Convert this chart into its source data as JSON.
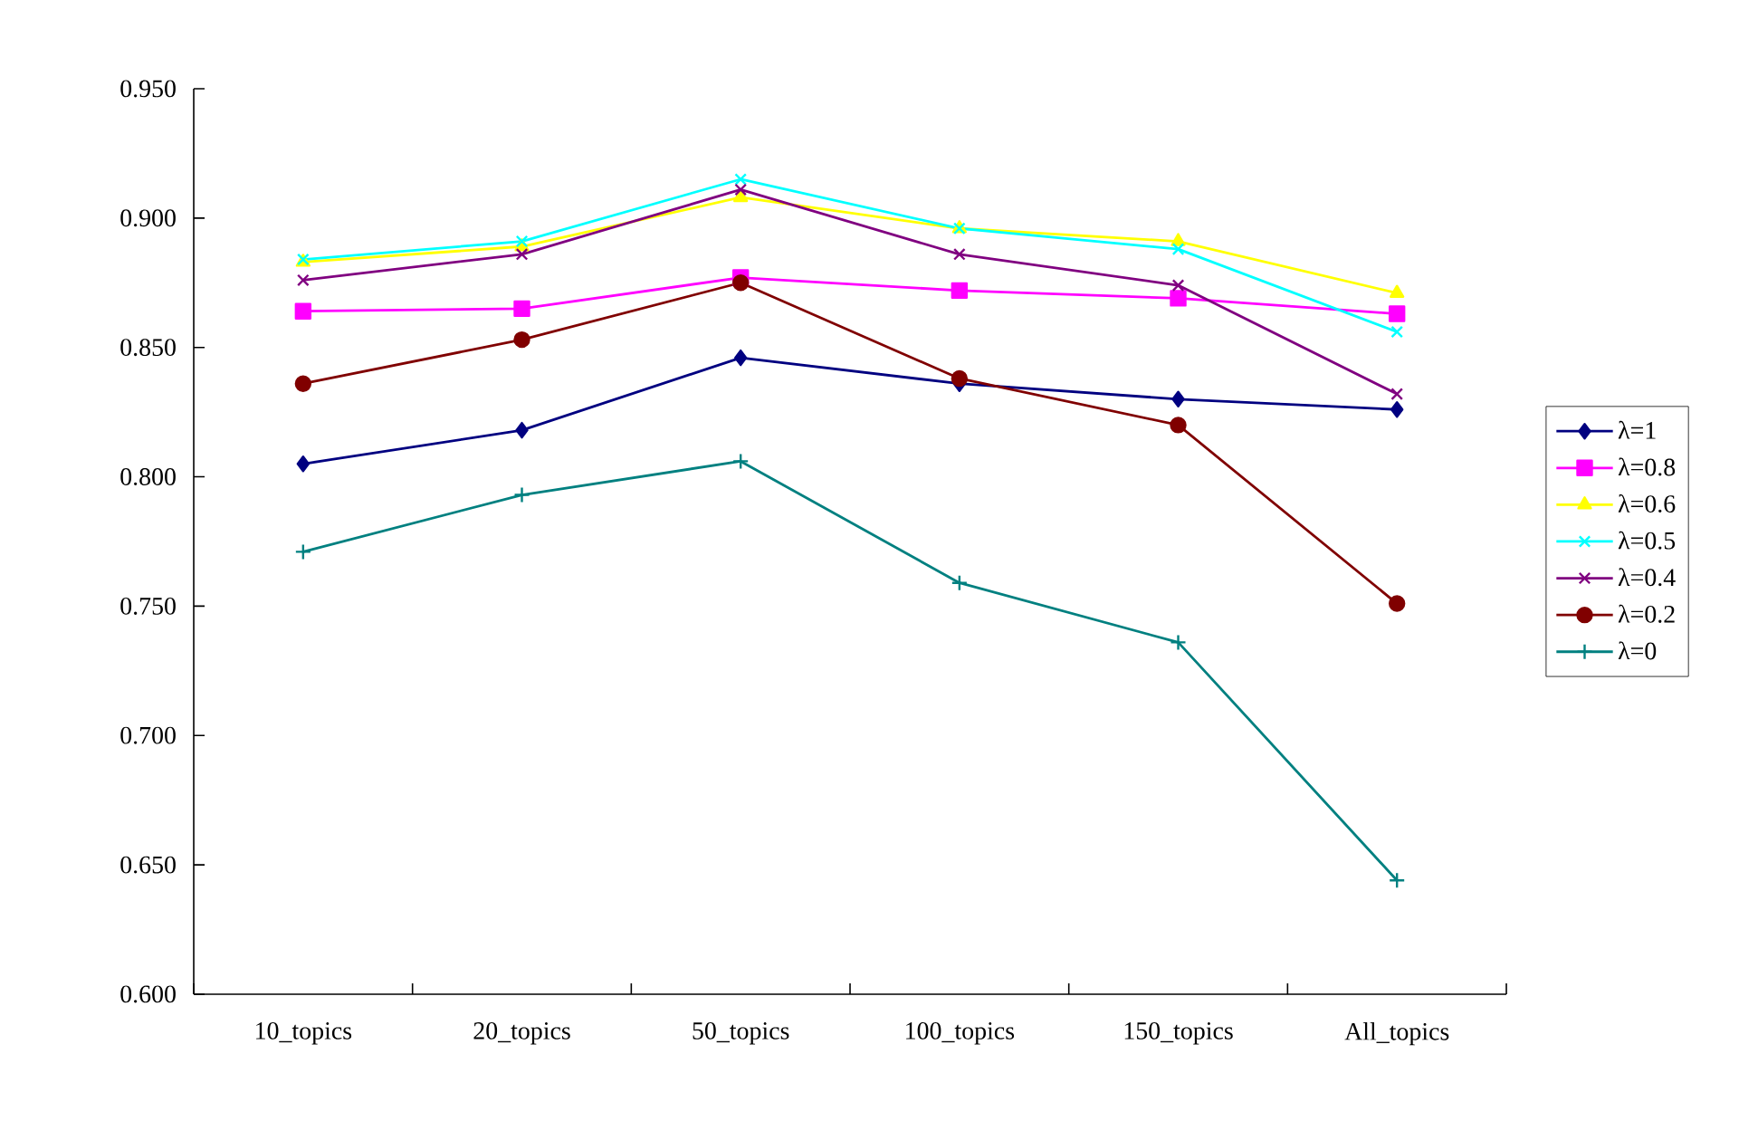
{
  "chart_data": {
    "type": "line",
    "categories": [
      "10_topics",
      "20_topics",
      "50_topics",
      "100_topics",
      "150_topics",
      "All_topics"
    ],
    "series": [
      {
        "name": "λ=1",
        "color": "#000080",
        "marker": "diamond",
        "values": [
          0.805,
          0.818,
          0.846,
          0.836,
          0.83,
          0.826
        ]
      },
      {
        "name": "λ=0.8",
        "color": "#ff00ff",
        "marker": "square",
        "values": [
          0.864,
          0.865,
          0.877,
          0.872,
          0.869,
          0.863
        ]
      },
      {
        "name": "λ=0.6",
        "color": "#ffff00",
        "marker": "triangle",
        "values": [
          0.883,
          0.889,
          0.908,
          0.896,
          0.891,
          0.871
        ]
      },
      {
        "name": "λ=0.5",
        "color": "#00ffff",
        "marker": "cross",
        "values": [
          0.884,
          0.891,
          0.915,
          0.896,
          0.888,
          0.856
        ]
      },
      {
        "name": "λ=0.4",
        "color": "#800080",
        "marker": "cross",
        "values": [
          0.876,
          0.886,
          0.911,
          0.886,
          0.874,
          0.832
        ]
      },
      {
        "name": "λ=0.2",
        "color": "#800000",
        "marker": "circle",
        "values": [
          0.836,
          0.853,
          0.875,
          0.838,
          0.82,
          0.751
        ]
      },
      {
        "name": "λ=0",
        "color": "#008080",
        "marker": "plus",
        "values": [
          0.771,
          0.793,
          0.806,
          0.759,
          0.736,
          0.644
        ]
      }
    ],
    "ylim": [
      0.6,
      0.95
    ],
    "yticks": [
      {
        "value": 0.6,
        "label": "0.600"
      },
      {
        "value": 0.65,
        "label": "0.650"
      },
      {
        "value": 0.7,
        "label": "0.700"
      },
      {
        "value": 0.75,
        "label": "0.750"
      },
      {
        "value": 0.8,
        "label": "0.800"
      },
      {
        "value": 0.85,
        "label": "0.850"
      },
      {
        "value": 0.9,
        "label": "0.900"
      },
      {
        "value": 0.95,
        "label": "0.950"
      }
    ],
    "grid": false,
    "legend": "right",
    "line_style": "solid"
  }
}
